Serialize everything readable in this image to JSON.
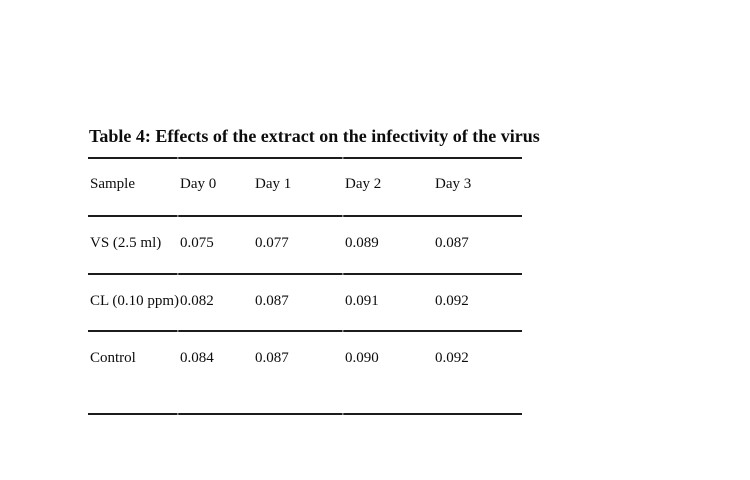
{
  "page": {
    "background_color": "#ffffff",
    "text_color": "#0d0d0d",
    "rule_color": "#1c1c1c"
  },
  "table": {
    "title": "Table 4: Effects of the extract on the infectivity of the virus",
    "columns": [
      "Sample",
      "Day 0",
      "Day 1",
      "Day 2",
      "Day 3"
    ],
    "rows": [
      [
        "VS (2.5 ml)",
        "0.075",
        "0.077",
        "0.089",
        "0.087"
      ],
      [
        "CL (0.10 ppm)",
        "0.082",
        "0.087",
        "0.091",
        "0.092"
      ],
      [
        "Control",
        "0.084",
        "0.087",
        "0.090",
        "0.092"
      ]
    ]
  },
  "chart_data": {
    "type": "table",
    "title": "Table 4: Effects of the extract on the infectivity of the virus",
    "columns": [
      "Sample",
      "Day 0",
      "Day 1",
      "Day 2",
      "Day 3"
    ],
    "rows": [
      {
        "sample": "VS (2.5 ml)",
        "day0": 0.075,
        "day1": 0.077,
        "day2": 0.089,
        "day3": 0.087
      },
      {
        "sample": "CL (0.10 ppm)",
        "day0": 0.082,
        "day1": 0.087,
        "day2": 0.091,
        "day3": 0.092
      },
      {
        "sample": "Control",
        "day0": 0.084,
        "day1": 0.087,
        "day2": 0.09,
        "day3": 0.092
      }
    ]
  }
}
